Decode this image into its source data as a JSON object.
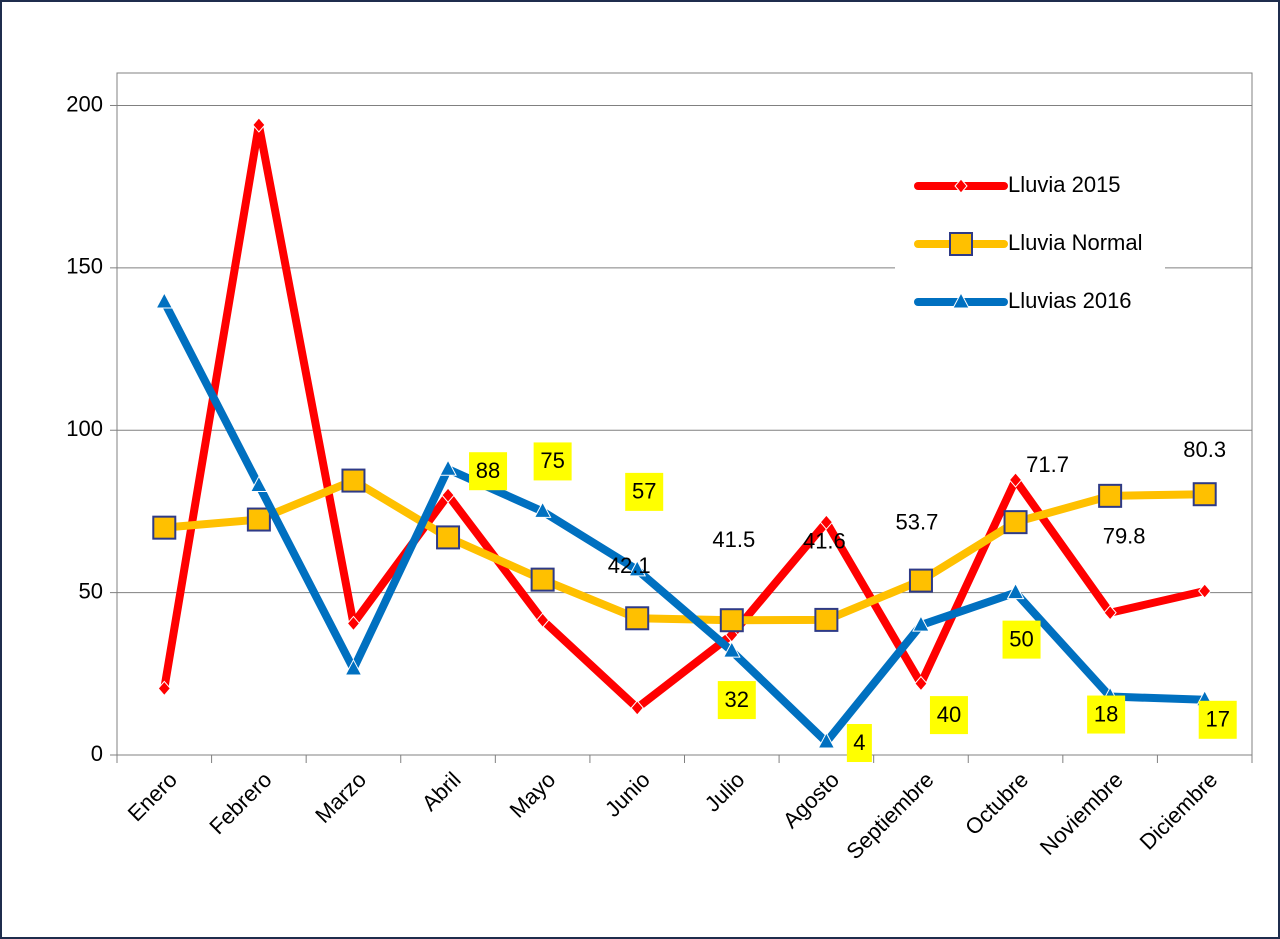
{
  "chart_data": {
    "type": "line",
    "categories": [
      "Enero",
      "Febrero",
      "Marzo",
      "Abril",
      "Mayo",
      "Junio",
      "Julio",
      "Agosto",
      "Septiembre",
      "Octubre",
      "Noviembre",
      "Diciembre"
    ],
    "series": [
      {
        "name": "Lluvia 2015",
        "color": "#ff0000",
        "marker": "diamond",
        "values": [
          20.5,
          194,
          40.5,
          80,
          41.5,
          14.5,
          37,
          71.7,
          22,
          84.7,
          43.8,
          50.5
        ]
      },
      {
        "name": "Lluvia Normal",
        "color": "#ffc000",
        "marker": "square",
        "values": [
          70,
          72.5,
          84.5,
          67,
          54,
          42.1,
          41.5,
          41.6,
          53.7,
          71.7,
          79.8,
          80.3
        ],
        "value_labels": [
          null,
          null,
          null,
          null,
          null,
          "42.1",
          "41.5",
          "41.6",
          "53.7",
          "71.7",
          "79.8",
          "80.3"
        ]
      },
      {
        "name": "Lluvias 2016",
        "color": "#0070c0",
        "marker": "triangle",
        "values": [
          139.5,
          83,
          26.5,
          88,
          75,
          57,
          32,
          4,
          40,
          50,
          18,
          17
        ],
        "value_labels": [
          null,
          null,
          null,
          "88",
          "75",
          "57",
          "32",
          "4",
          "40",
          "50",
          "18",
          "17"
        ]
      }
    ],
    "ylim": [
      0,
      210
    ],
    "yticks": [
      0,
      50,
      100,
      150,
      200
    ],
    "grid": true,
    "legend": "upper right"
  }
}
